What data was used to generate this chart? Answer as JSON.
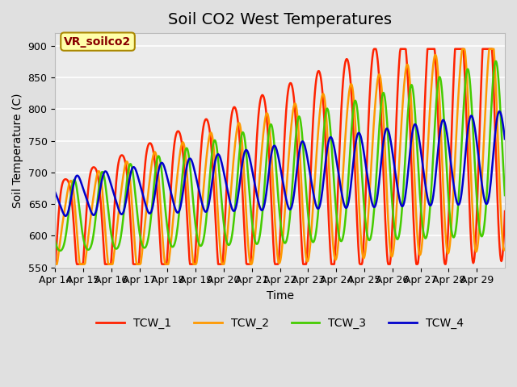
{
  "title": "Soil CO2 West Temperatures",
  "xlabel": "Time",
  "ylabel": "Soil Temperature (C)",
  "ylim": [
    550,
    920
  ],
  "yticks": [
    550,
    600,
    650,
    700,
    750,
    800,
    850,
    900
  ],
  "x_labels": [
    "Apr 14",
    "Apr 15",
    "Apr 16",
    "Apr 17",
    "Apr 18",
    "Apr 19",
    "Apr 20",
    "Apr 21",
    "Apr 22",
    "Apr 23",
    "Apr 24",
    "Apr 25",
    "Apr 26",
    "Apr 27",
    "Apr 28",
    "Apr 29"
  ],
  "annotation_text": "VR_soilco2",
  "annotation_bg": "#ffffaa",
  "annotation_border": "#aa8800",
  "annotation_text_color": "#880000",
  "colors": {
    "TCW_1": "#ff2200",
    "TCW_2": "#ff9900",
    "TCW_3": "#44cc00",
    "TCW_4": "#0000cc"
  },
  "line_widths": {
    "TCW_1": 1.8,
    "TCW_2": 1.8,
    "TCW_3": 1.8,
    "TCW_4": 1.8
  },
  "bg_color": "#e0e0e0",
  "plot_bg_color": "#ebebeb",
  "grid_color": "#ffffff",
  "title_fontsize": 14,
  "label_fontsize": 10,
  "tick_fontsize": 9
}
